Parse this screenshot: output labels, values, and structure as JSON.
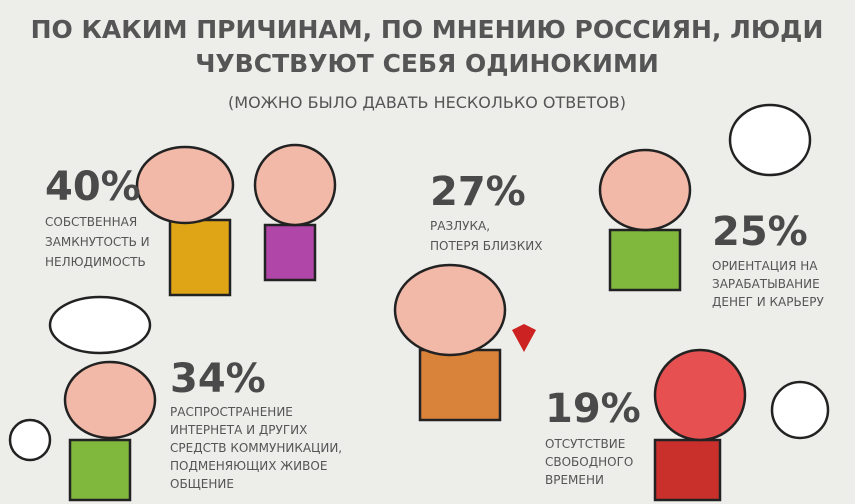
{
  "header": {
    "title_lines": [
      "ПО КАКИМ ПРИЧИНАМ, ПО МНЕНИЮ РОССИЯН, ЛЮДИ",
      "ЧУВСТВУЮТ СЕБЯ ОДИНОКИМИ"
    ],
    "subtitle": "(МОЖНО БЫЛО ДАВАТЬ НЕСКОЛЬКО ОТВЕТОВ)"
  },
  "items": [
    {
      "percent": "40%",
      "lines": [
        "СОБСТВЕННАЯ",
        "ЗАМКНУТОСТЬ И",
        "НЕЛЮДИМОСТЬ"
      ]
    },
    {
      "percent": "27%",
      "lines": [
        "РАЗЛУКА,",
        "ПОТЕРЯ БЛИЗКИХ"
      ]
    },
    {
      "percent": "25%",
      "lines": [
        "ОРИЕНТАЦИЯ НА",
        "ЗАРАБАТЫВАНИЕ",
        "ДЕНЕГ И КАРЬЕРУ"
      ]
    },
    {
      "percent": "34%",
      "lines": [
        "РАСПРОСТРАНЕНИЕ",
        "ИНТЕРНЕТА И ДРУГИХ",
        "СРЕДСТВ КОММУНИКАЦИИ,",
        "ПОДМЕНЯЮЩИХ ЖИВОЕ",
        "ОБЩЕНИЕ"
      ]
    },
    {
      "percent": "19%",
      "lines": [
        "ОТСУТСТВИЕ",
        "СВОБОДНОГО",
        "ВРЕМЕНИ"
      ]
    }
  ]
}
